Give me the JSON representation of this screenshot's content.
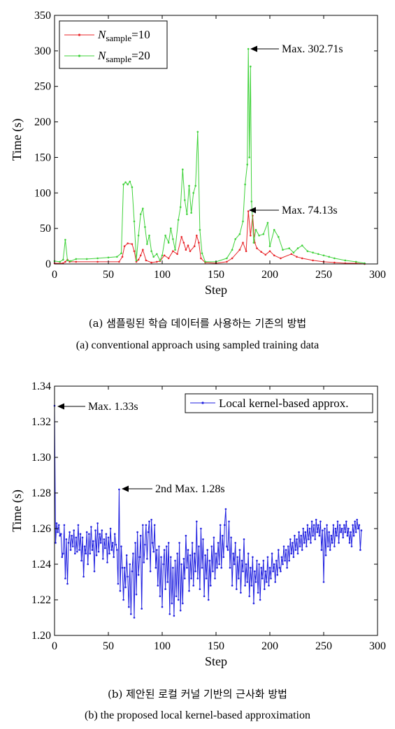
{
  "captions": {
    "a_korean": "(a) 샘플링된 학습 데이터를 사용하는 기존의 방법",
    "a_english": "(a) conventional approach using sampled training data",
    "b_korean": "(b) 제안된 로컬 커널 기반의 근사화 방법",
    "b_english": "(b) the proposed local kernel-based approximation"
  },
  "chart_data": [
    {
      "type": "line",
      "xlabel": "Step",
      "ylabel": "Time (s)",
      "xlim": [
        0,
        300
      ],
      "ylim": [
        0,
        350
      ],
      "xticks": [
        0,
        50,
        100,
        150,
        200,
        250,
        300
      ],
      "yticks": [
        0,
        50,
        100,
        150,
        200,
        250,
        300,
        350
      ],
      "grid": false,
      "legend_position": "top-left",
      "series": [
        {
          "name": "N_sample=10",
          "legend_main": "N",
          "legend_sub": "sample",
          "legend_suffix": "=10",
          "color": "#e8262a",
          "marker": "dot",
          "points": [
            [
              0,
              1
            ],
            [
              8,
              1
            ],
            [
              10,
              3
            ],
            [
              12,
              6
            ],
            [
              14,
              3
            ],
            [
              20,
              3
            ],
            [
              40,
              3
            ],
            [
              60,
              3
            ],
            [
              63,
              10
            ],
            [
              65,
              25
            ],
            [
              68,
              29
            ],
            [
              72,
              28
            ],
            [
              74,
              18
            ],
            [
              76,
              3
            ],
            [
              78,
              6
            ],
            [
              80,
              12
            ],
            [
              82,
              20
            ],
            [
              85,
              5
            ],
            [
              90,
              2
            ],
            [
              95,
              3
            ],
            [
              98,
              4
            ],
            [
              102,
              12
            ],
            [
              106,
              8
            ],
            [
              110,
              18
            ],
            [
              114,
              14
            ],
            [
              118,
              38
            ],
            [
              120,
              30
            ],
            [
              122,
              20
            ],
            [
              124,
              26
            ],
            [
              126,
              18
            ],
            [
              130,
              25
            ],
            [
              132,
              40
            ],
            [
              134,
              30
            ],
            [
              136,
              8
            ],
            [
              140,
              2
            ],
            [
              150,
              1
            ],
            [
              160,
              3
            ],
            [
              165,
              8
            ],
            [
              172,
              20
            ],
            [
              175,
              30
            ],
            [
              178,
              18
            ],
            [
              180,
              74.13
            ],
            [
              182,
              40
            ],
            [
              184,
              68
            ],
            [
              186,
              30
            ],
            [
              188,
              22
            ],
            [
              192,
              17
            ],
            [
              196,
              13
            ],
            [
              200,
              18
            ],
            [
              204,
              12
            ],
            [
              210,
              8
            ],
            [
              220,
              14
            ],
            [
              225,
              10
            ],
            [
              230,
              8
            ],
            [
              240,
              5
            ],
            [
              250,
              3
            ],
            [
              260,
              2
            ],
            [
              270,
              1
            ],
            [
              280,
              1
            ],
            [
              288,
              0
            ]
          ]
        },
        {
          "name": "N_sample=20",
          "legend_main": "N",
          "legend_sub": "sample",
          "legend_suffix": "=20",
          "color": "#3fd23a",
          "marker": "dot",
          "points": [
            [
              0,
              4
            ],
            [
              5,
              3
            ],
            [
              8,
              6
            ],
            [
              10,
              34
            ],
            [
              12,
              5
            ],
            [
              15,
              4
            ],
            [
              20,
              7
            ],
            [
              30,
              7
            ],
            [
              40,
              8
            ],
            [
              50,
              9
            ],
            [
              58,
              10
            ],
            [
              62,
              15
            ],
            [
              64,
              112
            ],
            [
              66,
              115
            ],
            [
              68,
              112
            ],
            [
              70,
              116
            ],
            [
              72,
              108
            ],
            [
              74,
              60
            ],
            [
              76,
              5
            ],
            [
              78,
              40
            ],
            [
              80,
              70
            ],
            [
              82,
              78
            ],
            [
              84,
              52
            ],
            [
              86,
              28
            ],
            [
              88,
              40
            ],
            [
              90,
              18
            ],
            [
              92,
              10
            ],
            [
              95,
              14
            ],
            [
              98,
              5
            ],
            [
              100,
              12
            ],
            [
              103,
              40
            ],
            [
              106,
              30
            ],
            [
              108,
              50
            ],
            [
              110,
              35
            ],
            [
              112,
              20
            ],
            [
              115,
              62
            ],
            [
              117,
              80
            ],
            [
              119,
              133
            ],
            [
              121,
              90
            ],
            [
              123,
              70
            ],
            [
              125,
              110
            ],
            [
              127,
              72
            ],
            [
              129,
              100
            ],
            [
              131,
              110
            ],
            [
              133,
              186
            ],
            [
              135,
              48
            ],
            [
              137,
              15
            ],
            [
              140,
              3
            ],
            [
              150,
              3
            ],
            [
              160,
              8
            ],
            [
              165,
              20
            ],
            [
              168,
              35
            ],
            [
              172,
              42
            ],
            [
              175,
              60
            ],
            [
              177,
              112
            ],
            [
              179,
              140
            ],
            [
              180,
              302.71
            ],
            [
              181,
              150
            ],
            [
              182,
              278
            ],
            [
              183,
              88
            ],
            [
              185,
              30
            ],
            [
              187,
              48
            ],
            [
              190,
              40
            ],
            [
              194,
              42
            ],
            [
              198,
              58
            ],
            [
              200,
              25
            ],
            [
              204,
              48
            ],
            [
              208,
              38
            ],
            [
              212,
              20
            ],
            [
              218,
              22
            ],
            [
              222,
              16
            ],
            [
              226,
              22
            ],
            [
              230,
              26
            ],
            [
              235,
              18
            ],
            [
              240,
              16
            ],
            [
              245,
              14
            ],
            [
              250,
              12
            ],
            [
              255,
              10
            ],
            [
              260,
              8
            ],
            [
              270,
              5
            ],
            [
              280,
              3
            ],
            [
              288,
              1
            ]
          ]
        }
      ],
      "annotations": [
        {
          "text": "Max. 302.71s",
          "x": 180,
          "y": 302.71
        },
        {
          "text": "Max. 74.13s",
          "x": 180,
          "y": 74.13
        }
      ]
    },
    {
      "type": "line",
      "xlabel": "Step",
      "ylabel": "Time (s)",
      "xlim": [
        0,
        300
      ],
      "ylim": [
        1.2,
        1.34
      ],
      "xticks": [
        0,
        50,
        100,
        150,
        200,
        250,
        300
      ],
      "yticks": [
        1.2,
        1.22,
        1.24,
        1.26,
        1.28,
        1.3,
        1.32,
        1.34
      ],
      "grid": false,
      "legend_position": "top-right",
      "series": [
        {
          "name": "Local kernel-based approx.",
          "color": "#1f1fe0",
          "marker": "dot",
          "start_x": 0,
          "values": [
            1.329,
            1.252,
            1.263,
            1.258,
            1.262,
            1.256,
            1.257,
            1.244,
            1.246,
            1.262,
            1.232,
            1.254,
            1.229,
            1.252,
            1.258,
            1.248,
            1.256,
            1.25,
            1.259,
            1.246,
            1.255,
            1.247,
            1.262,
            1.248,
            1.257,
            1.242,
            1.255,
            1.233,
            1.25,
            1.246,
            1.258,
            1.24,
            1.257,
            1.246,
            1.261,
            1.248,
            1.253,
            1.236,
            1.259,
            1.245,
            1.263,
            1.247,
            1.257,
            1.252,
            1.259,
            1.243,
            1.254,
            1.249,
            1.257,
            1.241,
            1.255,
            1.246,
            1.26,
            1.248,
            1.252,
            1.244,
            1.257,
            1.251,
            1.248,
            1.229,
            1.282,
            1.225,
            1.25,
            1.238,
            1.22,
            1.238,
            1.227,
            1.245,
            1.233,
            1.216,
            1.24,
            1.212,
            1.236,
            1.246,
            1.21,
            1.252,
            1.223,
            1.258,
            1.234,
            1.244,
            1.256,
            1.215,
            1.262,
            1.241,
            1.251,
            1.262,
            1.243,
            1.258,
            1.264,
            1.236,
            1.265,
            1.252,
            1.247,
            1.262,
            1.238,
            1.248,
            1.228,
            1.25,
            1.222,
            1.244,
            1.216,
            1.24,
            1.248,
            1.226,
            1.25,
            1.23,
            1.252,
            1.212,
            1.244,
            1.218,
            1.238,
            1.211,
            1.242,
            1.222,
            1.246,
            1.22,
            1.252,
            1.214,
            1.24,
            1.218,
            1.243,
            1.232,
            1.256,
            1.238,
            1.248,
            1.225,
            1.245,
            1.232,
            1.252,
            1.228,
            1.246,
            1.236,
            1.264,
            1.232,
            1.25,
            1.226,
            1.26,
            1.238,
            1.254,
            1.222,
            1.245,
            1.232,
            1.248,
            1.22,
            1.242,
            1.228,
            1.25,
            1.236,
            1.255,
            1.232,
            1.246,
            1.238,
            1.252,
            1.24,
            1.262,
            1.238,
            1.256,
            1.244,
            1.262,
            1.271,
            1.25,
            1.248,
            1.264,
            1.238,
            1.255,
            1.228,
            1.246,
            1.24,
            1.252,
            1.226,
            1.244,
            1.232,
            1.248,
            1.224,
            1.242,
            1.236,
            1.254,
            1.228,
            1.24,
            1.23,
            1.246,
            1.222,
            1.238,
            1.228,
            1.244,
            1.218,
            1.236,
            1.23,
            1.242,
            1.224,
            1.24,
            1.22,
            1.238,
            1.232,
            1.242,
            1.226,
            1.236,
            1.23,
            1.244,
            1.228,
            1.238,
            1.232,
            1.246,
            1.236,
            1.24,
            1.23,
            1.242,
            1.234,
            1.248,
            1.238,
            1.236,
            1.244,
            1.24,
            1.25,
            1.242,
            1.248,
            1.238,
            1.25,
            1.242,
            1.254,
            1.246,
            1.252,
            1.244,
            1.256,
            1.248,
            1.254,
            1.246,
            1.258,
            1.25,
            1.256,
            1.248,
            1.26,
            1.252,
            1.258,
            1.25,
            1.262,
            1.254,
            1.26,
            1.252,
            1.264,
            1.256,
            1.262,
            1.254,
            1.265,
            1.258,
            1.262,
            1.256,
            1.264,
            1.248,
            1.259,
            1.23,
            1.26,
            1.245,
            1.262,
            1.25,
            1.258,
            1.248,
            1.256,
            1.252,
            1.262,
            1.25,
            1.26,
            1.256,
            1.264,
            1.252,
            1.262,
            1.258,
            1.26,
            1.255,
            1.262,
            1.258,
            1.264,
            1.256,
            1.26,
            1.252,
            1.258,
            1.25,
            1.262,
            1.256,
            1.264,
            1.258,
            1.265,
            1.26,
            1.262,
            1.248,
            1.259
          ]
        }
      ],
      "annotations": [
        {
          "text": "Max. 1.33s",
          "x": 1,
          "y": 1.329
        },
        {
          "text": "2nd Max. 1.28s",
          "x": 61,
          "y": 1.282
        }
      ]
    }
  ]
}
